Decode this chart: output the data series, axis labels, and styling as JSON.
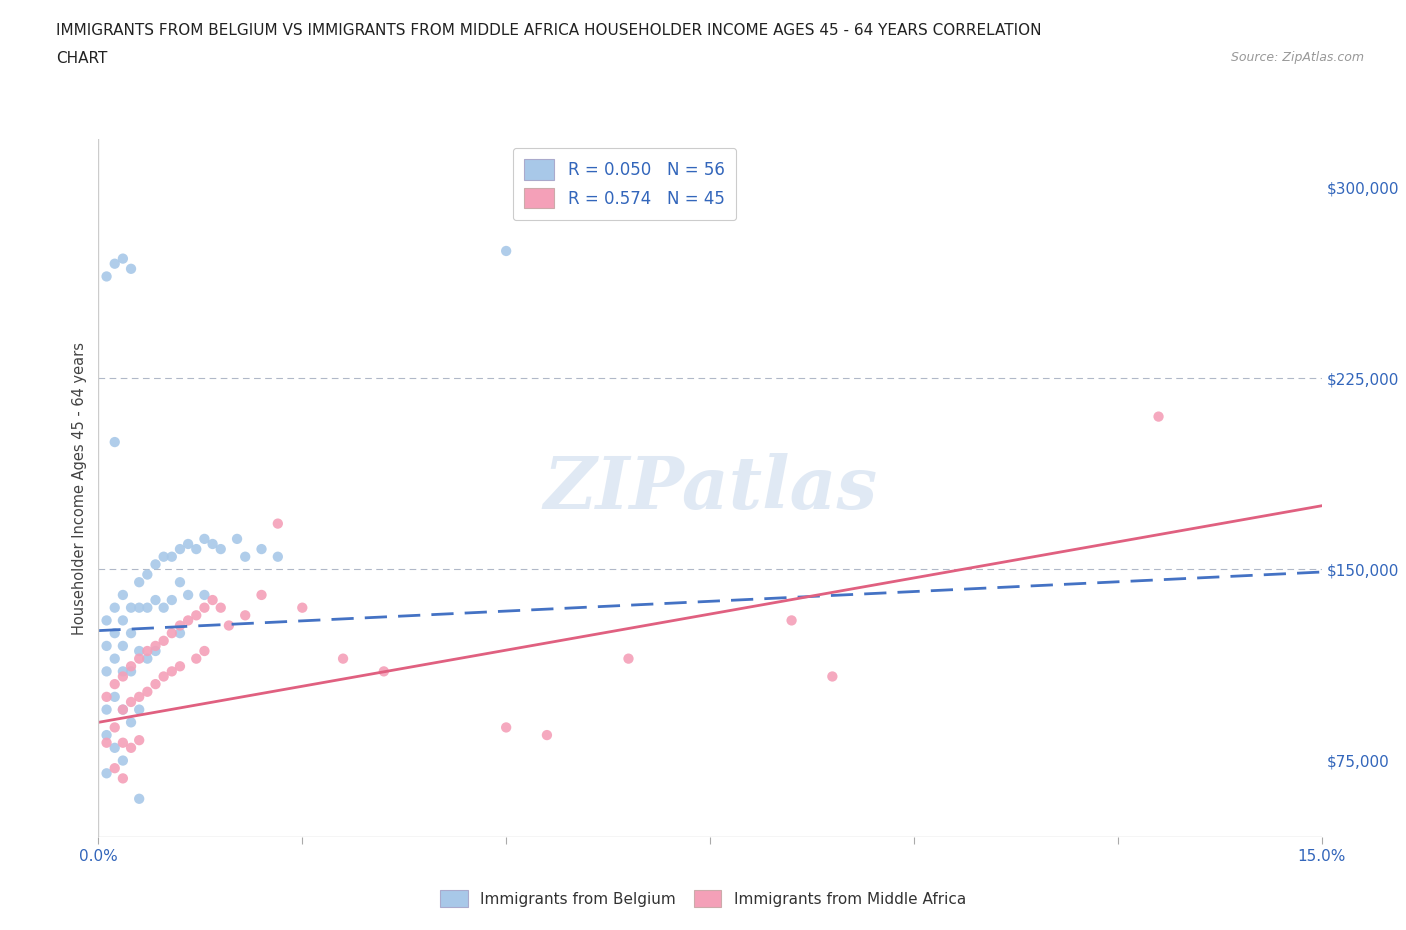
{
  "title_line1": "IMMIGRANTS FROM BELGIUM VS IMMIGRANTS FROM MIDDLE AFRICA HOUSEHOLDER INCOME AGES 45 - 64 YEARS CORRELATION",
  "title_line2": "CHART",
  "source_text": "Source: ZipAtlas.com",
  "ylabel": "Householder Income Ages 45 - 64 years",
  "xlim": [
    0.0,
    0.15
  ],
  "ylim": [
    45000,
    318750
  ],
  "xticks": [
    0.0,
    0.025,
    0.05,
    0.075,
    0.1,
    0.125,
    0.15
  ],
  "yticks_right": [
    75000,
    150000,
    225000,
    300000
  ],
  "ytick_labels_right": [
    "$75,000",
    "$150,000",
    "$225,000",
    "$300,000"
  ],
  "hlines": [
    150000,
    225000
  ],
  "watermark": "ZIPatlas",
  "legend_r1": "R = 0.050   N = 56",
  "legend_r2": "R = 0.574   N = 45",
  "belgium_color": "#a8c8e8",
  "belgium_line_color": "#4472c4",
  "middle_africa_color": "#f4a0b8",
  "middle_africa_line_color": "#e06080",
  "belgium_scatter_x": [
    0.001,
    0.001,
    0.001,
    0.001,
    0.002,
    0.002,
    0.002,
    0.002,
    0.002,
    0.003,
    0.003,
    0.003,
    0.003,
    0.003,
    0.003,
    0.004,
    0.004,
    0.004,
    0.004,
    0.005,
    0.005,
    0.005,
    0.005,
    0.006,
    0.006,
    0.006,
    0.007,
    0.007,
    0.007,
    0.008,
    0.008,
    0.009,
    0.009,
    0.01,
    0.01,
    0.01,
    0.011,
    0.011,
    0.012,
    0.013,
    0.013,
    0.014,
    0.015,
    0.017,
    0.018,
    0.02,
    0.022,
    0.001,
    0.002,
    0.003,
    0.004,
    0.002,
    0.005,
    0.05,
    0.001,
    0.001
  ],
  "belgium_scatter_y": [
    130000,
    120000,
    110000,
    95000,
    135000,
    125000,
    115000,
    100000,
    80000,
    140000,
    130000,
    120000,
    110000,
    95000,
    75000,
    135000,
    125000,
    110000,
    90000,
    145000,
    135000,
    118000,
    95000,
    148000,
    135000,
    115000,
    152000,
    138000,
    118000,
    155000,
    135000,
    155000,
    138000,
    158000,
    145000,
    125000,
    160000,
    140000,
    158000,
    162000,
    140000,
    160000,
    158000,
    162000,
    155000,
    158000,
    155000,
    265000,
    270000,
    272000,
    268000,
    200000,
    60000,
    275000,
    85000,
    70000
  ],
  "middle_africa_scatter_x": [
    0.001,
    0.001,
    0.002,
    0.002,
    0.002,
    0.003,
    0.003,
    0.003,
    0.003,
    0.004,
    0.004,
    0.004,
    0.005,
    0.005,
    0.005,
    0.006,
    0.006,
    0.007,
    0.007,
    0.008,
    0.008,
    0.009,
    0.009,
    0.01,
    0.01,
    0.011,
    0.012,
    0.012,
    0.013,
    0.013,
    0.014,
    0.015,
    0.016,
    0.018,
    0.02,
    0.022,
    0.025,
    0.03,
    0.035,
    0.05,
    0.055,
    0.065,
    0.085,
    0.09,
    0.13
  ],
  "middle_africa_scatter_y": [
    100000,
    82000,
    105000,
    88000,
    72000,
    108000,
    95000,
    82000,
    68000,
    112000,
    98000,
    80000,
    115000,
    100000,
    83000,
    118000,
    102000,
    120000,
    105000,
    122000,
    108000,
    125000,
    110000,
    128000,
    112000,
    130000,
    132000,
    115000,
    135000,
    118000,
    138000,
    135000,
    128000,
    132000,
    140000,
    168000,
    135000,
    115000,
    110000,
    88000,
    85000,
    115000,
    130000,
    108000,
    210000
  ],
  "belgium_trend_x": [
    0.0,
    0.15
  ],
  "belgium_trend_y": [
    126000,
    149000
  ],
  "middle_africa_trend_x": [
    0.0,
    0.15
  ],
  "middle_africa_trend_y": [
    90000,
    175000
  ]
}
